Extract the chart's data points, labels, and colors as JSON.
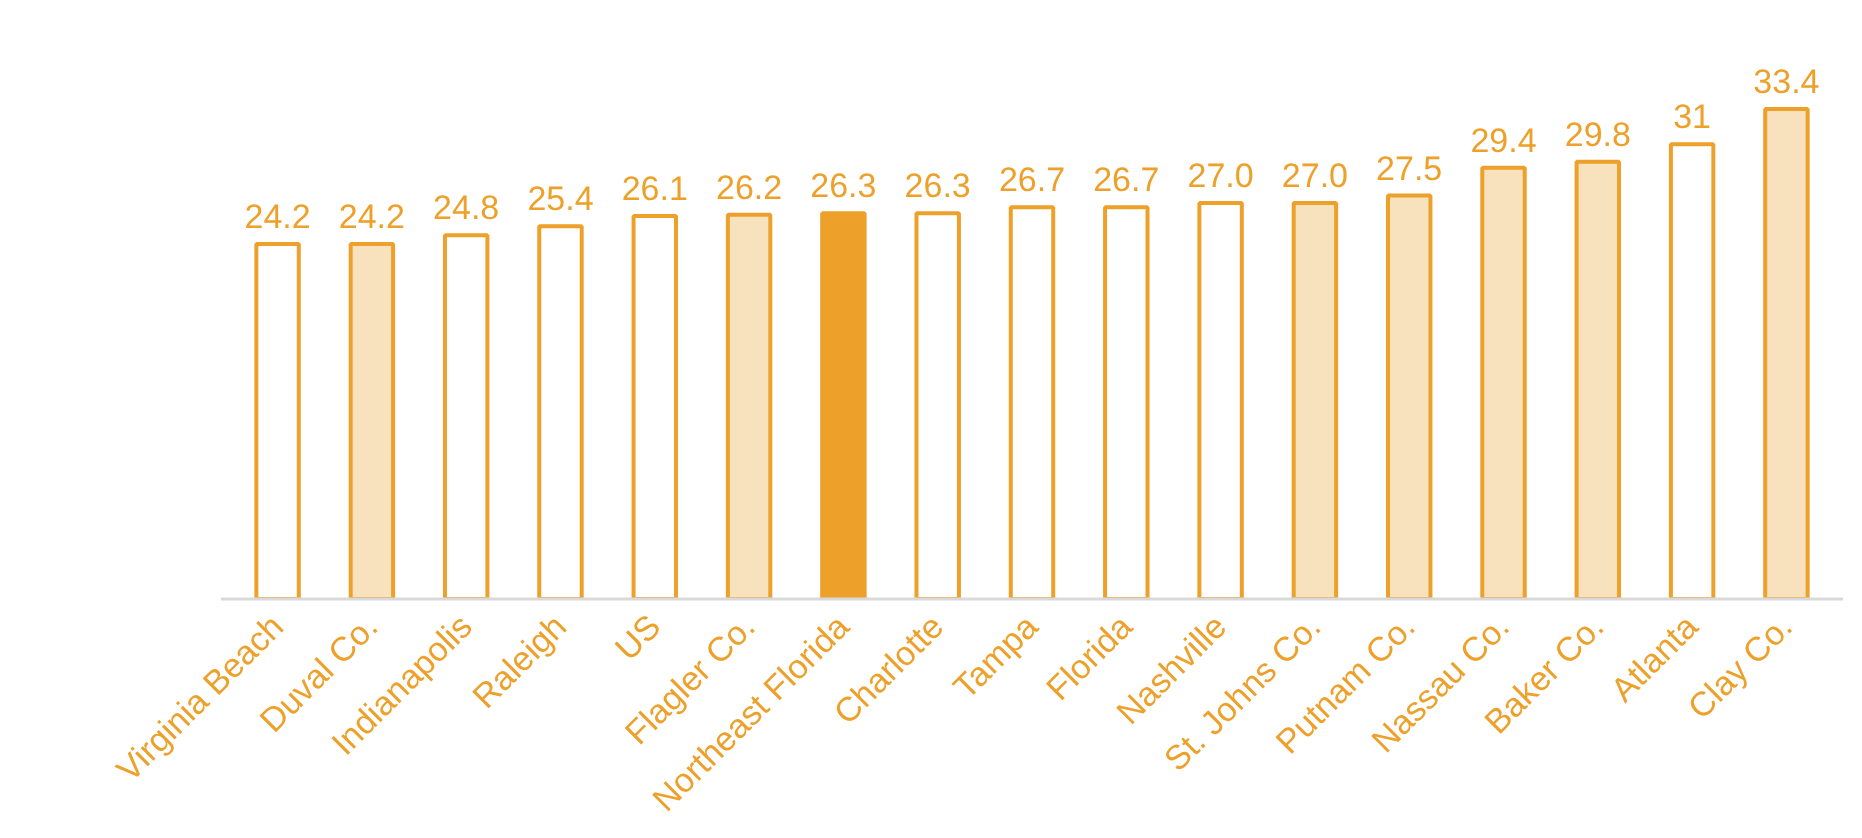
{
  "chart_data": {
    "type": "bar",
    "categories": [
      "Virginia Beach",
      "Duval Co.",
      "Indianapolis",
      "Raleigh",
      "US",
      "Flagler Co.",
      "Northeast Florida",
      "Charlotte",
      "Tampa",
      "Florida",
      "Nashville",
      "St. Johns Co.",
      "Putnam Co.",
      "Nassau Co.",
      "Baker Co.",
      "Atlanta",
      "Clay Co."
    ],
    "values": [
      24.2,
      24.2,
      24.8,
      25.4,
      26.1,
      26.2,
      26.3,
      26.3,
      26.7,
      26.7,
      27.0,
      27.0,
      27.5,
      29.4,
      29.8,
      31,
      33.4
    ],
    "value_labels": [
      "24.2",
      "24.2",
      "24.8",
      "25.4",
      "26.1",
      "26.2",
      "26.3",
      "26.3",
      "26.7",
      "26.7",
      "27.0",
      "27.0",
      "27.5",
      "29.4",
      "29.8",
      "31",
      "33.4"
    ],
    "color": "#eda02a",
    "colors": [
      "#ffffff",
      "#f8e2bd",
      "#ffffff",
      "#ffffff",
      "#ffffff",
      "#f8e2bd",
      "#eda02a",
      "#ffffff",
      "#ffffff",
      "#ffffff",
      "#ffffff",
      "#f8e2bd",
      "#f8e2bd",
      "#f8e2bd",
      "#f8e2bd",
      "#ffffff",
      "#f8e2bd"
    ],
    "grid": false
  }
}
